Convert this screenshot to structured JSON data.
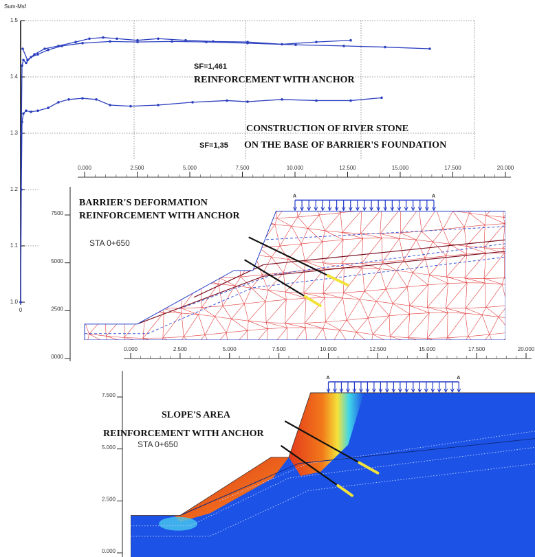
{
  "chart_data": [
    {
      "type": "line",
      "y_label": "Sum-Msf",
      "xlim": [
        0,
        660
      ],
      "xticks": [
        0
      ],
      "ylim": [
        1.0,
        1.5
      ],
      "yticks": [
        {
          "value": 1.0,
          "label": "1.0"
        },
        1.1,
        1.2,
        1.3,
        1.4,
        1.5
      ],
      "grid": true,
      "series": [
        {
          "color": "#2b3fbf",
          "x": [
            0,
            1,
            2,
            4,
            8,
            15,
            25,
            40,
            60,
            90,
            130,
            170,
            220,
            270,
            330,
            400,
            470,
            530,
            595
          ],
          "values": [
            1.0,
            1.3,
            1.42,
            1.43,
            1.425,
            1.435,
            1.44,
            1.448,
            1.455,
            1.46,
            1.463,
            1.462,
            1.463,
            1.462,
            1.46,
            1.457,
            1.455,
            1.453,
            1.45
          ]
        },
        {
          "color": "#2b3fbf",
          "x": [
            3,
            10,
            20,
            35,
            55,
            80,
            100,
            120,
            140,
            170,
            200,
            240,
            280,
            330,
            380,
            430,
            480
          ],
          "values": [
            1.45,
            1.43,
            1.44,
            1.45,
            1.455,
            1.462,
            1.468,
            1.47,
            1.468,
            1.465,
            1.468,
            1.465,
            1.463,
            1.462,
            1.458,
            1.462,
            1.465
          ]
        },
        {
          "color": "#2b3fbf",
          "x": [
            0,
            1,
            2,
            4,
            8,
            15,
            25,
            40,
            55,
            70,
            90,
            110,
            130,
            160,
            200,
            250,
            300,
            330,
            380,
            430,
            480,
            525
          ],
          "values": [
            1.0,
            1.2,
            1.32,
            1.335,
            1.34,
            1.338,
            1.34,
            1.345,
            1.355,
            1.36,
            1.362,
            1.36,
            1.35,
            1.348,
            1.35,
            1.355,
            1.358,
            1.356,
            1.36,
            1.358,
            1.358,
            1.363
          ]
        }
      ],
      "annotations": [
        "SF=1,461",
        "REINFORCEMENT WITH ANCHOR",
        "CONSTRUCTION OF RIVER STONE",
        "SF=1,35",
        "ON THE BASE OF BARRIER'S FOUNDATION"
      ]
    },
    {
      "type": "mesh",
      "title": [
        "BARRIER'S DEFORMATION",
        "REINFORCEMENT WITH ANCHOR"
      ],
      "section": "STA 0+650",
      "load_labels": [
        "A",
        "A"
      ],
      "xlim": [
        0,
        20
      ],
      "xticks": [
        {
          "value": 0,
          "label": "0.000"
        },
        {
          "value": 2.5,
          "label": "2.500"
        },
        {
          "value": 5,
          "label": "5.000"
        },
        {
          "value": 7.5,
          "label": "7.500"
        },
        {
          "value": 10,
          "label": "10.000"
        },
        {
          "value": 12.5,
          "label": "12.500"
        },
        {
          "value": 15,
          "label": "15.000"
        },
        {
          "value": 17.5,
          "label": "17.500"
        },
        {
          "value": 20,
          "label": "20.000"
        }
      ],
      "ylim": [
        0,
        7.5
      ],
      "yticks": [
        {
          "value": 0,
          "label": "0000"
        },
        {
          "value": 2.5,
          "label": "2500"
        },
        {
          "value": 5,
          "label": "5000"
        },
        {
          "value": 7.5,
          "label": "7500"
        }
      ]
    },
    {
      "type": "contour",
      "title": [
        "SLOPE'S AREA",
        "REINFORCEMENT WITH ANCHOR"
      ],
      "section": "STA 0+650",
      "load_labels": [
        "A",
        "A"
      ],
      "xlim": [
        0,
        20
      ],
      "xticks": [
        {
          "value": 0,
          "label": "0.000"
        },
        {
          "value": 2.5,
          "label": "2.500"
        },
        {
          "value": 5,
          "label": "5.000"
        },
        {
          "value": 7.5,
          "label": "7.500"
        },
        {
          "value": 10,
          "label": "10.000"
        },
        {
          "value": 12.5,
          "label": "12.500"
        },
        {
          "value": 15,
          "label": "15.000"
        },
        {
          "value": 17.5,
          "label": "17.500"
        },
        {
          "value": 20,
          "label": "20.000"
        }
      ],
      "ylim": [
        0,
        7.5
      ],
      "yticks": [
        {
          "value": 0,
          "label": "0.000"
        },
        {
          "value": 2.5,
          "label": "2.500"
        },
        {
          "value": 5,
          "label": "5.000"
        },
        {
          "value": 7.5,
          "label": "7.500"
        }
      ]
    }
  ]
}
